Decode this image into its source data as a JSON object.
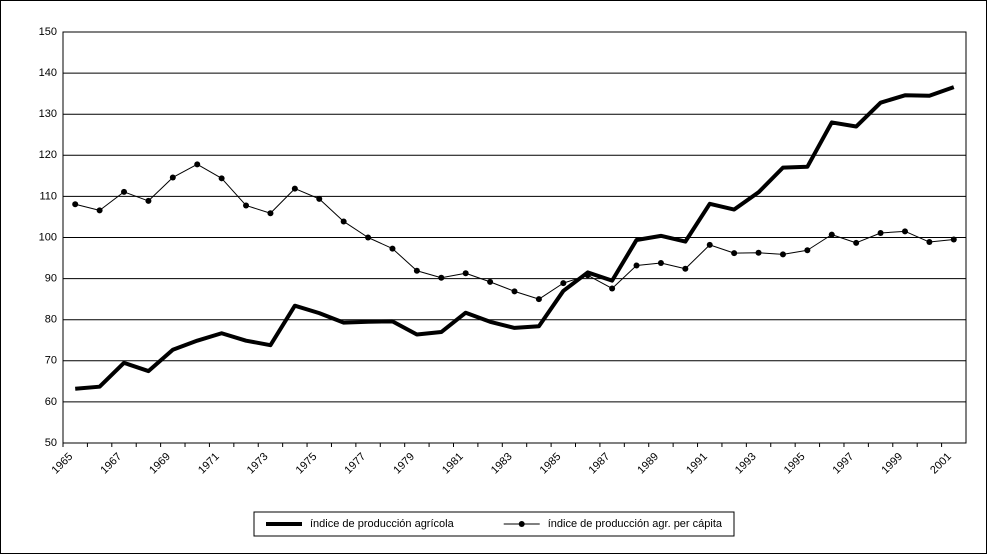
{
  "chart_data": {
    "type": "line",
    "categories": [
      "1965",
      null,
      "1967",
      null,
      "1969",
      null,
      "1971",
      null,
      "1973",
      null,
      "1975",
      null,
      "1977",
      null,
      "1979",
      null,
      "1981",
      null,
      "1983",
      null,
      "1985",
      null,
      "1987",
      null,
      "1989",
      null,
      "1991",
      null,
      "1993",
      null,
      "1995",
      null,
      "1997",
      null,
      "1999",
      null,
      "2001"
    ],
    "series": [
      {
        "name": "índice de producción agrícola",
        "color": "#000000",
        "line_width": 4,
        "marker": false,
        "values": [
          63.2,
          63.7,
          69.5,
          67.5,
          72.7,
          74.9,
          76.7,
          74.9,
          73.8,
          83.4,
          81.6,
          79.3,
          79.5,
          79.6,
          76.4,
          77.0,
          81.7,
          79.5,
          78.0,
          78.4,
          87.0,
          91.5,
          89.5,
          99.4,
          100.4,
          99.0,
          108.2,
          106.8,
          111.0,
          117.0,
          117.2,
          128.0,
          127.0,
          132.8,
          134.6,
          134.5,
          136.6
        ]
      },
      {
        "name": "índice de producción agr. per cápita",
        "color": "#000000",
        "line_width": 1,
        "marker": true,
        "values": [
          108.1,
          106.6,
          111.1,
          108.9,
          114.6,
          117.8,
          114.4,
          107.8,
          105.9,
          111.9,
          109.4,
          103.9,
          100.0,
          97.3,
          91.9,
          90.2,
          91.3,
          89.2,
          86.9,
          85.0,
          88.9,
          90.8,
          87.6,
          93.2,
          93.8,
          92.4,
          98.2,
          96.2,
          96.3,
          95.9,
          96.9,
          100.7,
          98.7,
          101.1,
          101.5,
          98.9,
          99.5
        ]
      }
    ],
    "ylim": [
      50,
      150
    ],
    "yticks": [
      50,
      60,
      70,
      80,
      90,
      100,
      110,
      120,
      130,
      140,
      150
    ],
    "grid": true,
    "legend": "bottom"
  }
}
